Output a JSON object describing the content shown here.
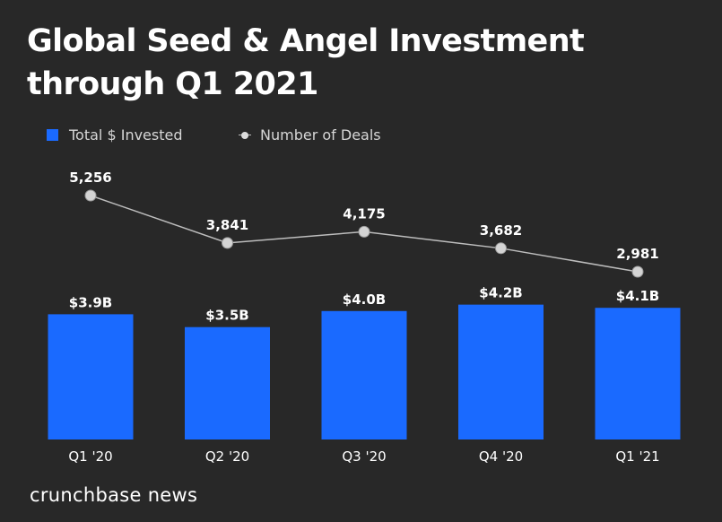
{
  "header": {
    "title_line1": "Global Seed & Angel Investment",
    "title_line2": "through Q1 2021"
  },
  "legend": {
    "bars_label": "Total $ Invested",
    "line_label": "Number of Deals"
  },
  "colors": {
    "background": "#282828",
    "bar": "#1a6aff",
    "line": "#bdbdbd",
    "marker": "#d4d4d4",
    "text": "#ffffff"
  },
  "chart_data": {
    "type": "bar",
    "title": "Global Seed & Angel Investment through Q1 2021",
    "categories": [
      "Q1 '20",
      "Q2 '20",
      "Q3 '20",
      "Q4 '20",
      "Q1 '21"
    ],
    "series": [
      {
        "name": "Total $ Invested",
        "type": "bar",
        "values": [
          3.9,
          3.5,
          4.0,
          4.2,
          4.1
        ],
        "labels": [
          "$3.9B",
          "$3.5B",
          "$4.0B",
          "$4.2B",
          "$4.1B"
        ]
      },
      {
        "name": "Number of Deals",
        "type": "line",
        "values": [
          5256,
          3841,
          4175,
          3682,
          2981
        ],
        "labels": [
          "5,256",
          "3,841",
          "4,175",
          "3,682",
          "2,981"
        ]
      }
    ],
    "legend_position": "top-left",
    "grid": false
  },
  "footer": {
    "brand": "crunchbase news"
  }
}
